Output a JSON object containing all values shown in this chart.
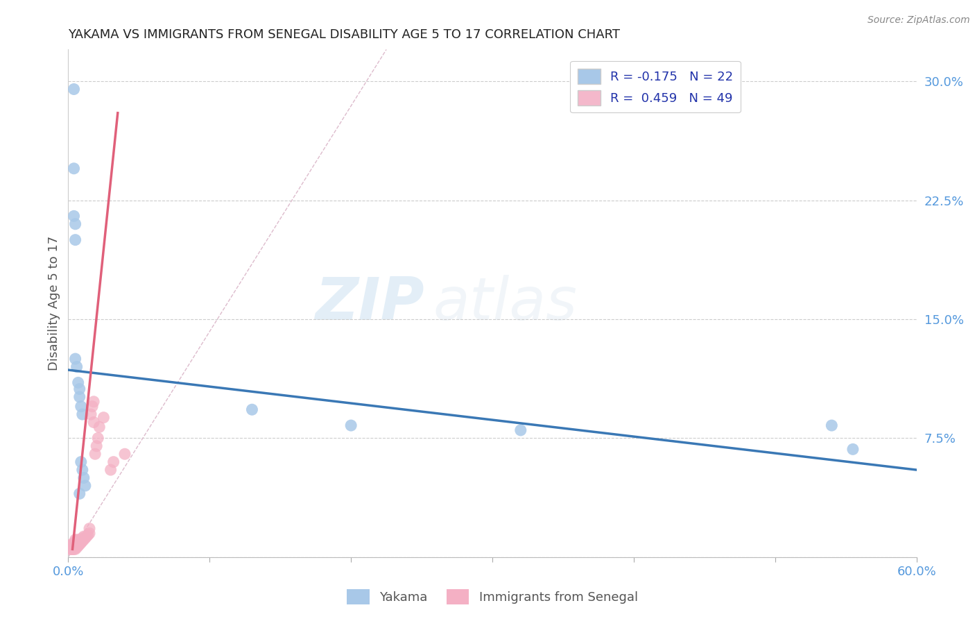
{
  "title": "YAKAMA VS IMMIGRANTS FROM SENEGAL DISABILITY AGE 5 TO 17 CORRELATION CHART",
  "source": "Source: ZipAtlas.com",
  "ylabel": "Disability Age 5 to 17",
  "xlim": [
    0.0,
    0.6
  ],
  "ylim": [
    0.0,
    0.32
  ],
  "xticks": [
    0.0,
    0.1,
    0.2,
    0.3,
    0.4,
    0.5,
    0.6
  ],
  "xticklabels": [
    "0.0%",
    "",
    "",
    "",
    "",
    "",
    "60.0%"
  ],
  "yticks_right": [
    0.3,
    0.225,
    0.15,
    0.075,
    0.0
  ],
  "yticklabels_right": [
    "30.0%",
    "22.5%",
    "15.0%",
    "7.5%",
    ""
  ],
  "legend_labels": [
    "R = -0.175   N = 22",
    "R =  0.459   N = 49"
  ],
  "legend_colors": [
    "#a8c8e8",
    "#f4b8cb"
  ],
  "yakama_color": "#a8c8e8",
  "senegal_color": "#f4b0c4",
  "trendline_yakama_color": "#3a78b5",
  "trendline_senegal_color": "#e0607a",
  "watermark_zip": "ZIP",
  "watermark_atlas": "atlas",
  "background_color": "#ffffff",
  "grid_color": "#cccccc",
  "title_color": "#222222",
  "axis_color": "#5599dd",
  "ref_line_color": "#ddbbcc",
  "yakama_scatter_x": [
    0.004,
    0.004,
    0.004,
    0.005,
    0.005,
    0.005,
    0.006,
    0.007,
    0.008,
    0.13,
    0.2,
    0.32,
    0.54,
    0.555,
    0.008,
    0.009,
    0.01,
    0.009,
    0.01,
    0.011,
    0.012,
    0.008
  ],
  "yakama_scatter_y": [
    0.295,
    0.245,
    0.215,
    0.21,
    0.2,
    0.125,
    0.12,
    0.11,
    0.106,
    0.093,
    0.083,
    0.08,
    0.083,
    0.068,
    0.101,
    0.095,
    0.09,
    0.06,
    0.055,
    0.05,
    0.045,
    0.04
  ],
  "senegal_scatter_x": [
    0.001,
    0.002,
    0.002,
    0.003,
    0.003,
    0.003,
    0.004,
    0.004,
    0.004,
    0.005,
    0.005,
    0.005,
    0.005,
    0.005,
    0.005,
    0.006,
    0.006,
    0.006,
    0.006,
    0.007,
    0.007,
    0.007,
    0.007,
    0.008,
    0.008,
    0.008,
    0.009,
    0.009,
    0.01,
    0.01,
    0.011,
    0.011,
    0.012,
    0.013,
    0.014,
    0.015,
    0.015,
    0.016,
    0.017,
    0.018,
    0.018,
    0.019,
    0.02,
    0.021,
    0.022,
    0.025,
    0.03,
    0.032,
    0.04
  ],
  "senegal_scatter_y": [
    0.005,
    0.005,
    0.008,
    0.005,
    0.005,
    0.008,
    0.005,
    0.006,
    0.008,
    0.005,
    0.006,
    0.007,
    0.009,
    0.01,
    0.011,
    0.006,
    0.007,
    0.008,
    0.01,
    0.007,
    0.008,
    0.009,
    0.011,
    0.008,
    0.009,
    0.01,
    0.009,
    0.011,
    0.01,
    0.012,
    0.011,
    0.013,
    0.012,
    0.013,
    0.014,
    0.015,
    0.018,
    0.09,
    0.095,
    0.098,
    0.085,
    0.065,
    0.07,
    0.075,
    0.082,
    0.088,
    0.055,
    0.06,
    0.065
  ],
  "yakama_trendline_x": [
    0.0,
    0.6
  ],
  "yakama_trendline_y": [
    0.118,
    0.055
  ],
  "senegal_trendline_x": [
    0.003,
    0.035
  ],
  "senegal_trendline_y": [
    0.005,
    0.28
  ],
  "ref_line_x": [
    0.0,
    0.225
  ],
  "ref_line_y": [
    0.0,
    0.32
  ]
}
